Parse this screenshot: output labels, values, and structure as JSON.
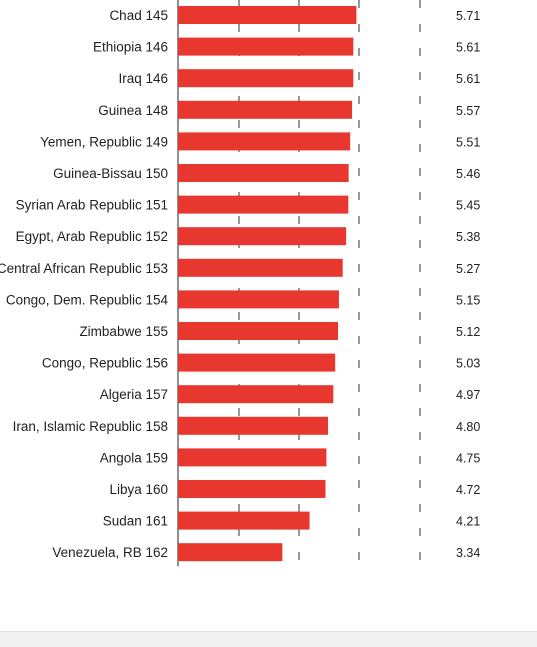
{
  "chart_data": {
    "type": "bar",
    "orientation": "horizontal",
    "categories": [
      "Chad",
      "Ethiopia",
      "Iraq",
      "Guinea",
      "Yemen, Republic",
      "Guinea-Bissau",
      "Syrian Arab Republic",
      "Egypt, Arab Republic",
      "Central African Republic",
      "Congo, Dem. Republic",
      "Zimbabwe",
      "Congo, Republic",
      "Algeria",
      "Iran, Islamic Republic",
      "Angola",
      "Libya",
      "Sudan",
      "Venezuela, RB"
    ],
    "ranks": [
      145,
      146,
      146,
      148,
      149,
      150,
      151,
      152,
      153,
      154,
      155,
      156,
      157,
      158,
      159,
      160,
      161,
      162
    ],
    "values": [
      5.71,
      5.61,
      5.61,
      5.57,
      5.51,
      5.46,
      5.45,
      5.38,
      5.27,
      5.15,
      5.12,
      5.03,
      4.97,
      4.8,
      4.75,
      4.72,
      4.21,
      3.34
    ],
    "value_labels": [
      "5.71",
      "5.61",
      "5.61",
      "5.57",
      "5.51",
      "5.46",
      "5.45",
      "5.38",
      "5.27",
      "5.15",
      "5.12",
      "5.03",
      "4.97",
      "4.80",
      "4.75",
      "4.72",
      "4.21",
      "3.34"
    ],
    "xlim": [
      0,
      10
    ],
    "bar_color": "#e8372e",
    "grid": "dashed vertical reference lines",
    "title": "",
    "xlabel": "",
    "ylabel": ""
  }
}
